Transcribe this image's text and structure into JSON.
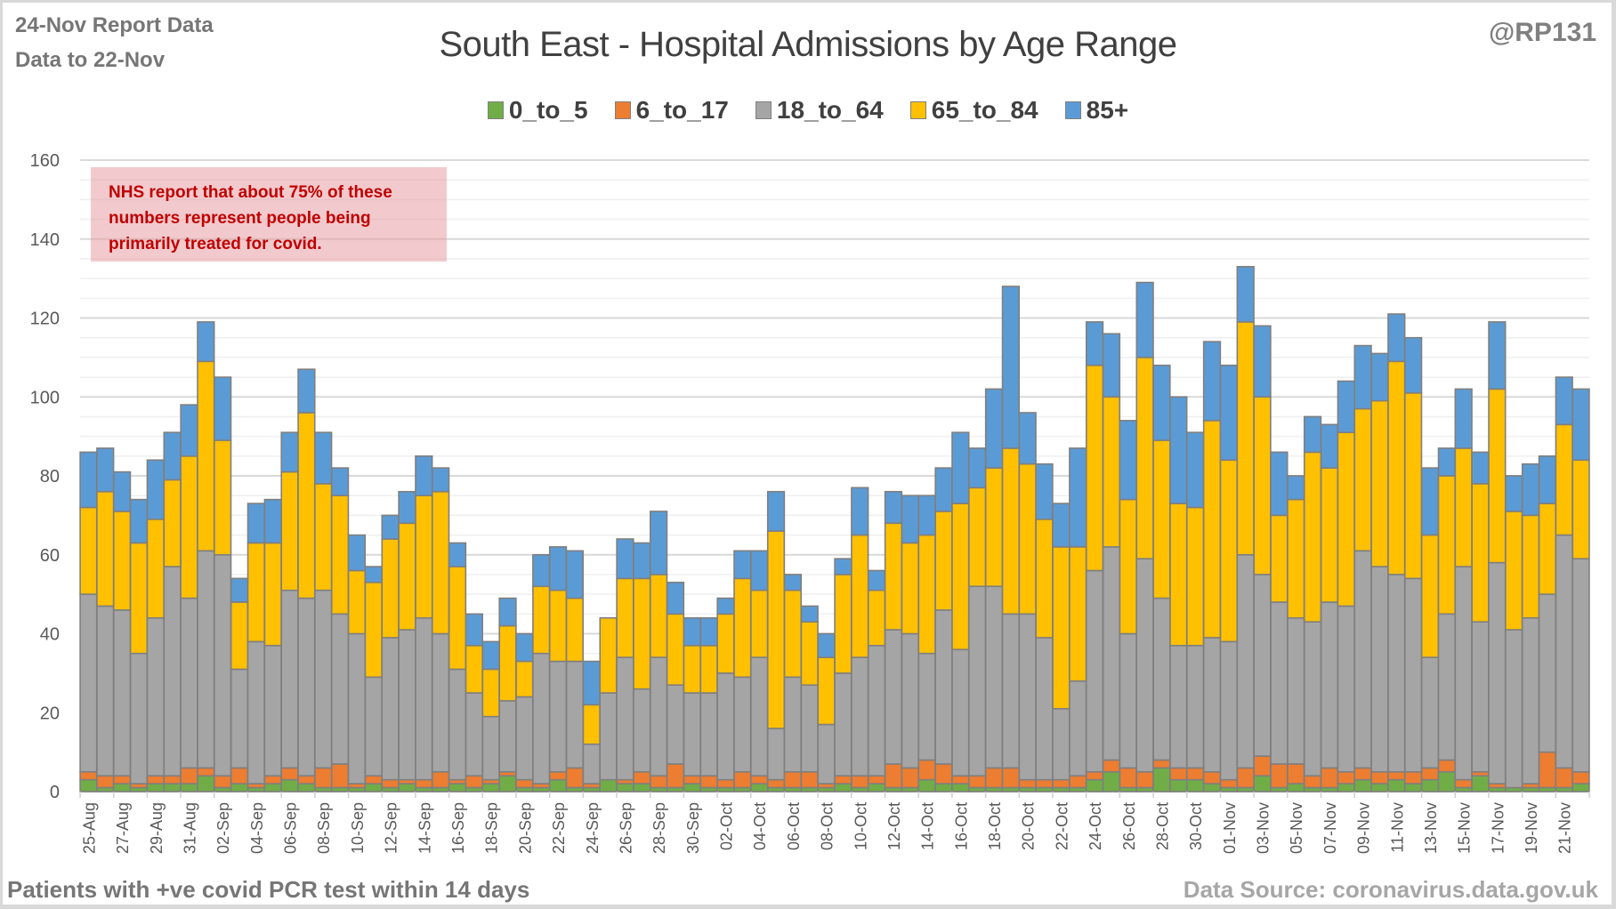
{
  "header": {
    "report_line": "24-Nov Report Data",
    "data_line": "Data to 22-Nov",
    "handle": "@RP131"
  },
  "annotation": "NHS report that about 75% of these numbers represent people being primarily treated for covid.",
  "footer": {
    "left": "Patients with  +ve covid PCR test within 14 days",
    "right": "Data Source: coronavirus.data.gov.uk"
  },
  "chart_data": {
    "type": "bar",
    "stacked": true,
    "title": "South East - Hospital Admissions by Age Range",
    "xlabel": "",
    "ylabel": "",
    "ylim": [
      0,
      160
    ],
    "yticks": [
      0,
      20,
      40,
      60,
      80,
      100,
      120,
      140,
      160
    ],
    "grid": true,
    "legend_position": "top",
    "colors": {
      "0_to_5": "#70ad47",
      "6_to_17": "#ed7d31",
      "18_to_64": "#a5a5a5",
      "65_to_84": "#ffc000",
      "85+": "#5b9bd5"
    },
    "x_tick_labels": [
      "25-Aug",
      "27-Aug",
      "29-Aug",
      "31-Aug",
      "02-Sep",
      "04-Sep",
      "06-Sep",
      "08-Sep",
      "10-Sep",
      "12-Sep",
      "14-Sep",
      "16-Sep",
      "18-Sep",
      "20-Sep",
      "22-Sep",
      "24-Sep",
      "26-Sep",
      "28-Sep",
      "30-Sep",
      "02-Oct",
      "04-Oct",
      "06-Oct",
      "08-Oct",
      "10-Oct",
      "12-Oct",
      "14-Oct",
      "16-Oct",
      "18-Oct",
      "20-Oct",
      "22-Oct",
      "24-Oct",
      "26-Oct",
      "28-Oct",
      "30-Oct",
      "01-Nov",
      "03-Nov",
      "05-Nov",
      "07-Nov",
      "09-Nov",
      "11-Nov",
      "13-Nov",
      "15-Nov",
      "17-Nov",
      "19-Nov",
      "21-Nov"
    ],
    "categories": [
      "25-Aug",
      "26-Aug",
      "27-Aug",
      "28-Aug",
      "29-Aug",
      "30-Aug",
      "31-Aug",
      "01-Sep",
      "02-Sep",
      "03-Sep",
      "04-Sep",
      "05-Sep",
      "06-Sep",
      "07-Sep",
      "08-Sep",
      "09-Sep",
      "10-Sep",
      "11-Sep",
      "12-Sep",
      "13-Sep",
      "14-Sep",
      "15-Sep",
      "16-Sep",
      "17-Sep",
      "18-Sep",
      "19-Sep",
      "20-Sep",
      "21-Sep",
      "22-Sep",
      "23-Sep",
      "24-Sep",
      "25-Sep",
      "26-Sep",
      "27-Sep",
      "28-Sep",
      "29-Sep",
      "30-Sep",
      "01-Oct",
      "02-Oct",
      "03-Oct",
      "04-Oct",
      "05-Oct",
      "06-Oct",
      "07-Oct",
      "08-Oct",
      "09-Oct",
      "10-Oct",
      "11-Oct",
      "12-Oct",
      "13-Oct",
      "14-Oct",
      "15-Oct",
      "16-Oct",
      "17-Oct",
      "18-Oct",
      "19-Oct",
      "20-Oct",
      "21-Oct",
      "22-Oct",
      "23-Oct",
      "24-Oct",
      "25-Oct",
      "26-Oct",
      "27-Oct",
      "28-Oct",
      "29-Oct",
      "30-Oct",
      "31-Oct",
      "01-Nov",
      "02-Nov",
      "03-Nov",
      "04-Nov",
      "05-Nov",
      "06-Nov",
      "07-Nov",
      "08-Nov",
      "09-Nov",
      "10-Nov",
      "11-Nov",
      "12-Nov",
      "13-Nov",
      "14-Nov",
      "15-Nov",
      "16-Nov",
      "17-Nov",
      "18-Nov",
      "19-Nov",
      "20-Nov",
      "21-Nov",
      "22-Nov"
    ],
    "series": [
      {
        "name": "0_to_5",
        "values": [
          3,
          1,
          2,
          1,
          2,
          2,
          2,
          4,
          1,
          2,
          1,
          2,
          3,
          2,
          1,
          1,
          1,
          2,
          1,
          2,
          1,
          1,
          2,
          1,
          2,
          4,
          1,
          1,
          3,
          1,
          1,
          3,
          2,
          2,
          1,
          1,
          2,
          1,
          1,
          1,
          2,
          1,
          1,
          1,
          1,
          2,
          1,
          2,
          1,
          1,
          3,
          2,
          2,
          1,
          1,
          1,
          1,
          1,
          1,
          1,
          3,
          5,
          1,
          1,
          6,
          3,
          3,
          2,
          1,
          1,
          4,
          1,
          2,
          1,
          1,
          2,
          3,
          2,
          3,
          2,
          3,
          5,
          1,
          4,
          1,
          1,
          1,
          1,
          1,
          2
        ]
      },
      {
        "name": "6_to_17",
        "values": [
          2,
          3,
          2,
          1,
          2,
          2,
          4,
          2,
          3,
          4,
          1,
          2,
          3,
          2,
          5,
          6,
          1,
          2,
          2,
          1,
          2,
          4,
          1,
          3,
          1,
          1,
          2,
          1,
          2,
          5,
          1,
          0,
          1,
          3,
          3,
          6,
          2,
          3,
          2,
          4,
          2,
          2,
          4,
          4,
          1,
          2,
          3,
          2,
          6,
          5,
          5,
          5,
          2,
          3,
          5,
          5,
          2,
          2,
          2,
          3,
          2,
          3,
          5,
          4,
          2,
          3,
          3,
          3,
          2,
          5,
          5,
          6,
          5,
          3,
          5,
          3,
          3,
          3,
          2,
          3,
          3,
          3,
          2,
          1,
          1,
          0,
          1,
          9,
          5,
          3
        ]
      },
      {
        "name": "18_to_64",
        "values": [
          45,
          43,
          42,
          33,
          40,
          53,
          43,
          55,
          56,
          25,
          36,
          33,
          45,
          45,
          45,
          38,
          38,
          25,
          36,
          38,
          41,
          35,
          28,
          21,
          16,
          18,
          21,
          33,
          28,
          27,
          10,
          22,
          31,
          21,
          30,
          20,
          21,
          21,
          27,
          24,
          30,
          13,
          24,
          22,
          15,
          26,
          30,
          33,
          34,
          34,
          27,
          39,
          32,
          48,
          46,
          39,
          42,
          36,
          18,
          24,
          51,
          54,
          34,
          54,
          41,
          31,
          31,
          34,
          35,
          54,
          46,
          41,
          37,
          39,
          42,
          42,
          55,
          52,
          50,
          49,
          28,
          37,
          54,
          38,
          56,
          40,
          42,
          40,
          59,
          54
        ]
      },
      {
        "name": "65_to_84",
        "values": [
          22,
          29,
          25,
          28,
          25,
          22,
          36,
          48,
          29,
          17,
          25,
          26,
          30,
          47,
          27,
          30,
          16,
          24,
          25,
          27,
          31,
          36,
          26,
          12,
          12,
          19,
          9,
          17,
          18,
          16,
          10,
          19,
          20,
          28,
          21,
          18,
          12,
          12,
          15,
          25,
          17,
          50,
          22,
          16,
          17,
          25,
          31,
          14,
          27,
          23,
          30,
          25,
          37,
          25,
          30,
          42,
          38,
          30,
          41,
          34,
          52,
          38,
          34,
          51,
          40,
          36,
          35,
          55,
          46,
          59,
          45,
          22,
          30,
          43,
          34,
          44,
          36,
          42,
          54,
          47,
          31,
          35,
          30,
          35,
          44,
          30,
          26,
          23,
          28,
          25
        ]
      },
      {
        "name": "85+",
        "values": [
          14,
          11,
          10,
          11,
          15,
          12,
          13,
          10,
          16,
          6,
          10,
          11,
          10,
          11,
          13,
          7,
          9,
          4,
          6,
          8,
          10,
          6,
          6,
          8,
          7,
          7,
          7,
          8,
          11,
          12,
          11,
          0,
          10,
          9,
          16,
          8,
          7,
          7,
          4,
          7,
          10,
          10,
          4,
          4,
          6,
          4,
          12,
          5,
          8,
          12,
          10,
          11,
          18,
          10,
          20,
          41,
          13,
          14,
          11,
          25,
          11,
          16,
          20,
          19,
          19,
          27,
          19,
          20,
          24,
          14,
          18,
          16,
          6,
          9,
          11,
          13,
          16,
          12,
          12,
          14,
          17,
          7,
          15,
          8,
          17,
          9,
          13,
          12,
          12,
          18
        ]
      }
    ]
  }
}
